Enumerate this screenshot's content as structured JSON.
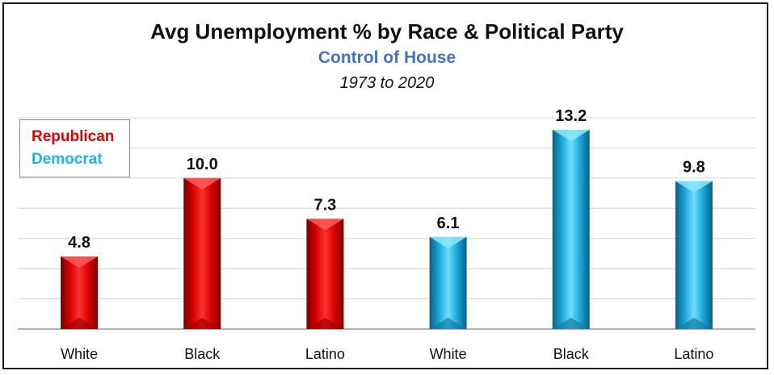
{
  "chart_data": {
    "type": "bar",
    "title": "Avg Unemployment % by Race & Political Party",
    "subtitle": "Control of House",
    "period": "1973 to 2020",
    "categories": [
      "White",
      "Black",
      "Latino",
      "White",
      "Black",
      "Latino"
    ],
    "values": [
      4.8,
      10.0,
      7.3,
      6.1,
      13.2,
      9.8
    ],
    "value_labels": [
      "4.8",
      "10.0",
      "7.3",
      "6.1",
      "13.2",
      "9.8"
    ],
    "bar_party": [
      "Republican",
      "Republican",
      "Republican",
      "Democrat",
      "Democrat",
      "Democrat"
    ],
    "legend": [
      {
        "name": "Republican",
        "color": "#e00000"
      },
      {
        "name": "Democrat",
        "color": "#1fb4e6"
      }
    ],
    "legend_position": "top-left",
    "ylim": [
      0,
      14
    ],
    "y_gridline_step": 2,
    "grid": true,
    "xlabel": "",
    "ylabel": ""
  }
}
